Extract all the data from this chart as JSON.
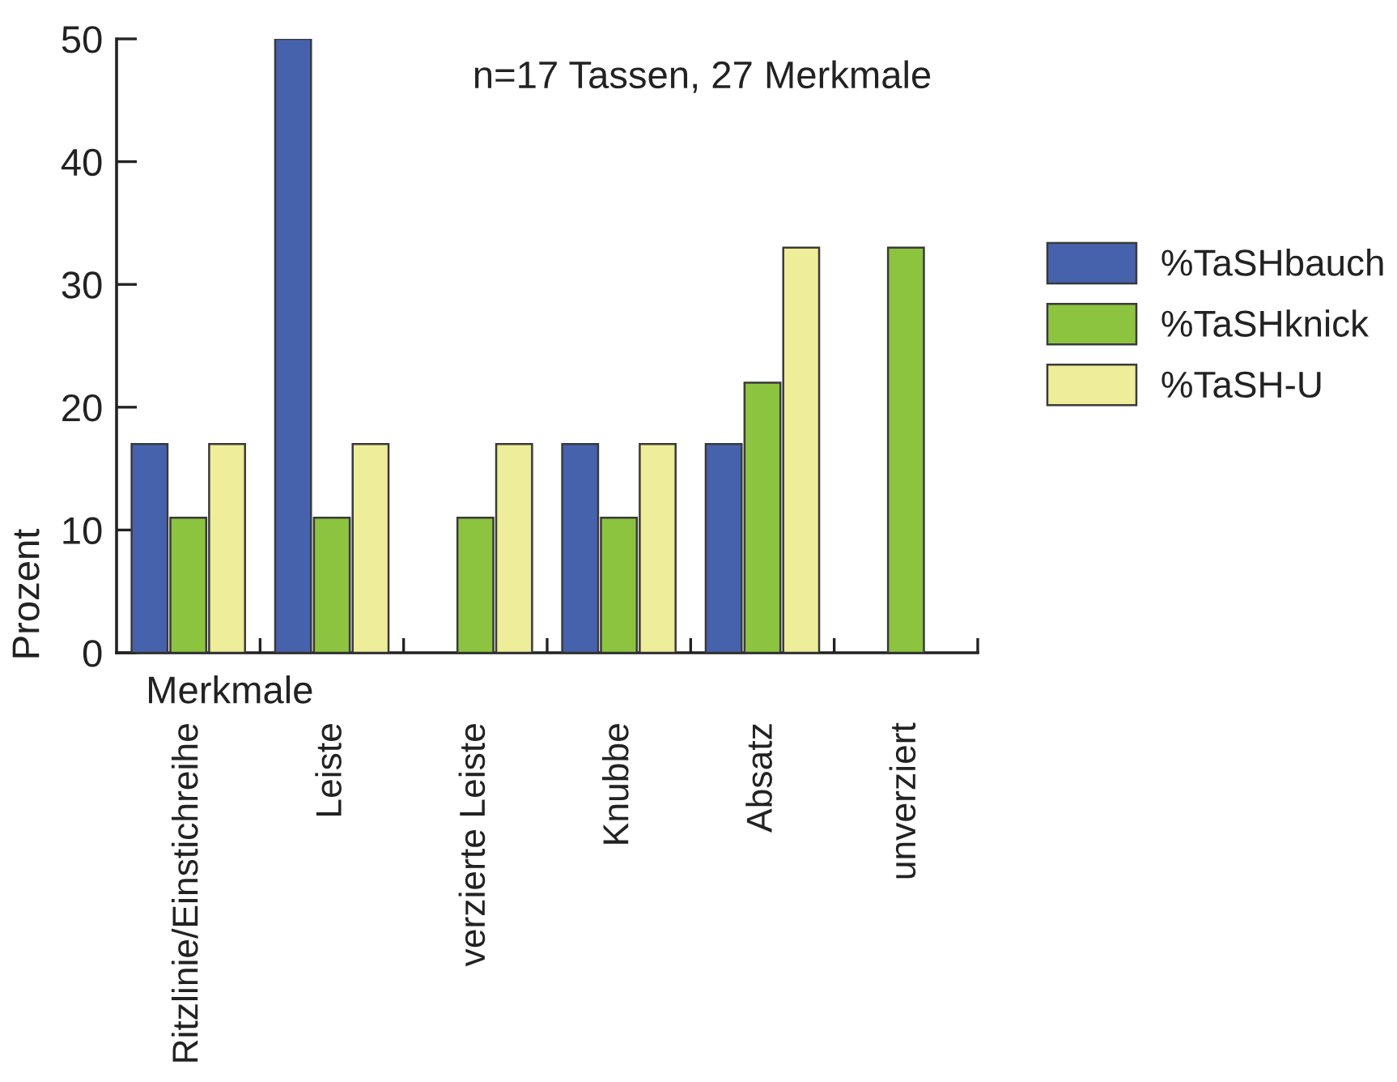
{
  "chart_data": {
    "type": "bar",
    "categories": [
      "Ritzlinie/Einstichreihe",
      "Leiste",
      "verzierte Leiste",
      "Knubbe",
      "Absatz",
      "unverziert"
    ],
    "series": [
      {
        "name": "%TaSHbauch",
        "color": "#4662ad",
        "values": [
          17,
          50,
          null,
          17,
          17,
          null
        ]
      },
      {
        "name": "%TaSHknick",
        "color": "#8cc43f",
        "values": [
          11,
          11,
          11,
          11,
          22,
          33
        ]
      },
      {
        "name": "%TaSH-U",
        "color": "#eeed99",
        "values": [
          17,
          17,
          17,
          17,
          33,
          null
        ]
      }
    ],
    "xlabel": "Merkmale",
    "ylabel": "Prozent",
    "ylim": [
      0,
      50
    ],
    "yticks": [
      0,
      10,
      20,
      30,
      40,
      50
    ],
    "annotations": [
      "n=17 Tassen, 27 Merkmale"
    ],
    "legend": "right"
  }
}
